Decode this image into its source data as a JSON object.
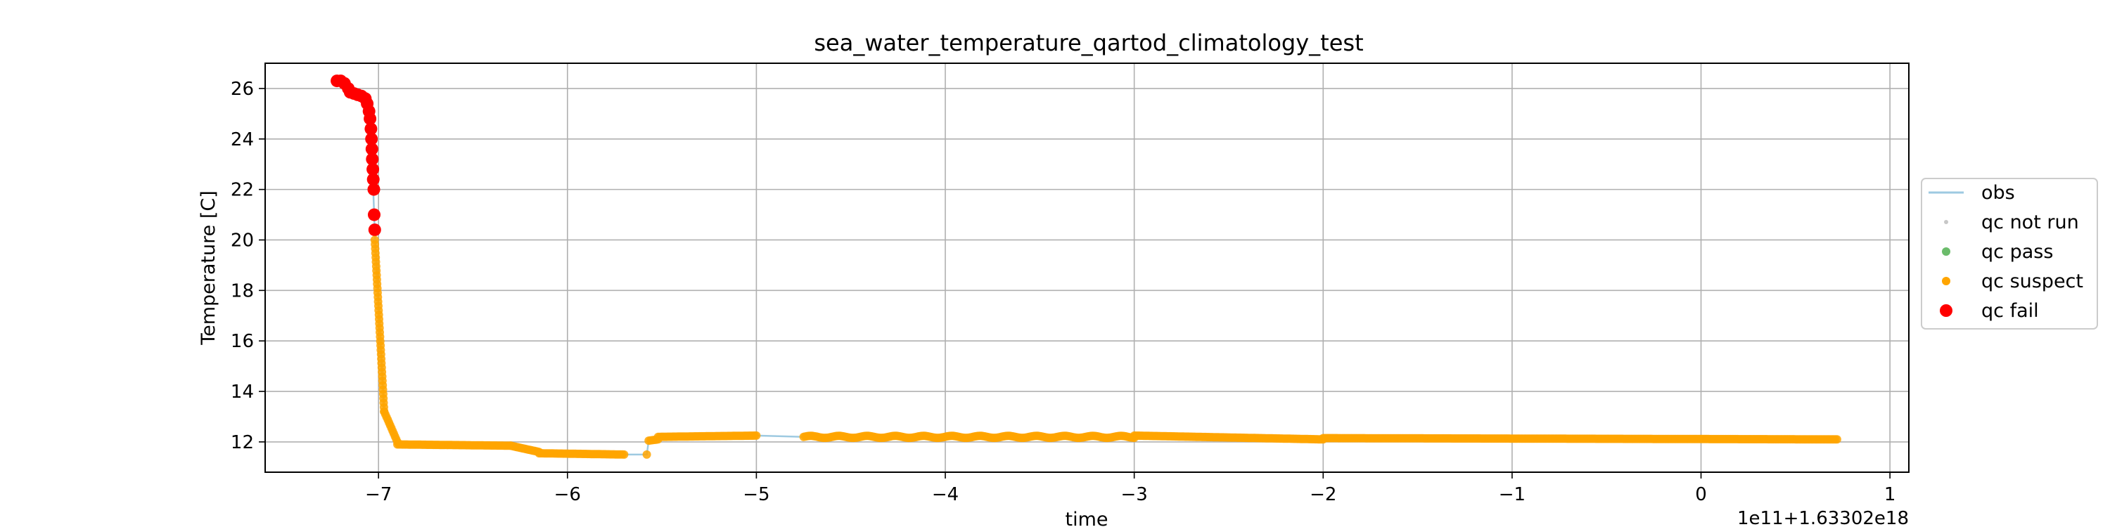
{
  "chart_data": {
    "type": "scatter",
    "title": "sea_water_temperature_qartod_climatology_test",
    "xlabel": "time",
    "ylabel": "Temperature [C]",
    "x_offset_text": "1e11+1.63302e18",
    "xlim": [
      -7.6,
      1.1
    ],
    "ylim": [
      10.8,
      27.0
    ],
    "xticks": [
      -7,
      -6,
      -5,
      -4,
      -3,
      -2,
      -1,
      0,
      1
    ],
    "xtick_labels": [
      "−7",
      "−6",
      "−5",
      "−4",
      "−3",
      "−2",
      "−1",
      "0",
      "1"
    ],
    "yticks": [
      12,
      14,
      16,
      18,
      20,
      22,
      24,
      26
    ],
    "ytick_labels": [
      "12",
      "14",
      "16",
      "18",
      "20",
      "22",
      "24",
      "26"
    ],
    "grid": true,
    "legend_position": "center-right-outside",
    "legend": [
      {
        "key": "obs",
        "label": "obs"
      },
      {
        "key": "not_run",
        "label": "qc not run"
      },
      {
        "key": "pass",
        "label": "qc pass"
      },
      {
        "key": "suspect",
        "label": "qc suspect"
      },
      {
        "key": "fail",
        "label": "qc fail"
      }
    ],
    "colors": {
      "obs": "#9ecae1",
      "not_run": "#c7c7c7",
      "pass": "#2ca02c",
      "suspect": "#ffa500",
      "fail": "#ff0000"
    },
    "series": [
      {
        "name": "qc fail",
        "key": "fail",
        "points": [
          [
            -7.22,
            26.3
          ],
          [
            -7.2,
            26.3
          ],
          [
            -7.18,
            26.2
          ],
          [
            -7.16,
            26.0
          ],
          [
            -7.15,
            25.85
          ],
          [
            -7.13,
            25.8
          ],
          [
            -7.11,
            25.75
          ],
          [
            -7.09,
            25.7
          ],
          [
            -7.07,
            25.6
          ],
          [
            -7.06,
            25.4
          ],
          [
            -7.05,
            25.1
          ],
          [
            -7.045,
            24.8
          ],
          [
            -7.04,
            24.4
          ],
          [
            -7.037,
            24.0
          ],
          [
            -7.035,
            23.6
          ],
          [
            -7.033,
            23.2
          ],
          [
            -7.03,
            22.8
          ],
          [
            -7.028,
            22.4
          ],
          [
            -7.025,
            22.0
          ],
          [
            -7.023,
            21.0
          ],
          [
            -7.02,
            20.4
          ]
        ]
      },
      {
        "name": "qc suspect",
        "segments": [
          {
            "x0": -7.02,
            "x1": -6.97,
            "y0": 20.0,
            "y1": 13.2,
            "n": 40
          },
          {
            "x0": -6.97,
            "x1": -6.9,
            "y0": 13.2,
            "y1": 12.0,
            "n": 12
          },
          {
            "x0": -6.9,
            "x1": -6.3,
            "y0": 11.9,
            "y1": 11.85,
            "n": 70
          },
          {
            "x0": -6.3,
            "x1": -6.15,
            "y0": 11.85,
            "y1": 11.6,
            "n": 20
          },
          {
            "x0": -6.15,
            "x1": -5.7,
            "y0": 11.55,
            "y1": 11.5,
            "n": 50
          },
          {
            "x0": -5.57,
            "x1": -5.52,
            "y0": 12.05,
            "y1": 12.1,
            "n": 6
          },
          {
            "x0": -5.52,
            "x1": -5.0,
            "y0": 12.2,
            "y1": 12.25,
            "n": 60
          },
          {
            "x0": -4.75,
            "x1": -3.0,
            "y0": 12.2,
            "y1": 12.2,
            "n": 200
          },
          {
            "x0": -3.0,
            "x1": -2.0,
            "y0": 12.25,
            "y1": 12.1,
            "n": 120
          },
          {
            "x0": -2.0,
            "x1": 0.72,
            "y0": 12.15,
            "y1": 12.1,
            "n": 300
          }
        ],
        "key": "suspect",
        "isolated_points": [
          [
            -5.58,
            11.5
          ]
        ]
      }
    ],
    "obs_line": [
      [
        -7.22,
        26.3
      ],
      [
        -7.15,
        25.85
      ],
      [
        -7.07,
        25.6
      ],
      [
        -7.04,
        24.4
      ],
      [
        -7.02,
        20.4
      ],
      [
        -6.97,
        13.2
      ],
      [
        -6.9,
        12.0
      ],
      [
        -6.3,
        11.85
      ],
      [
        -6.15,
        11.6
      ],
      [
        -5.7,
        11.5
      ],
      [
        -5.58,
        11.5
      ],
      [
        -5.57,
        12.05
      ],
      [
        -5.52,
        12.2
      ],
      [
        -5.0,
        12.25
      ],
      [
        -4.75,
        12.2
      ],
      [
        -3.0,
        12.2
      ],
      [
        -2.0,
        12.1
      ],
      [
        0.72,
        12.1
      ]
    ]
  }
}
